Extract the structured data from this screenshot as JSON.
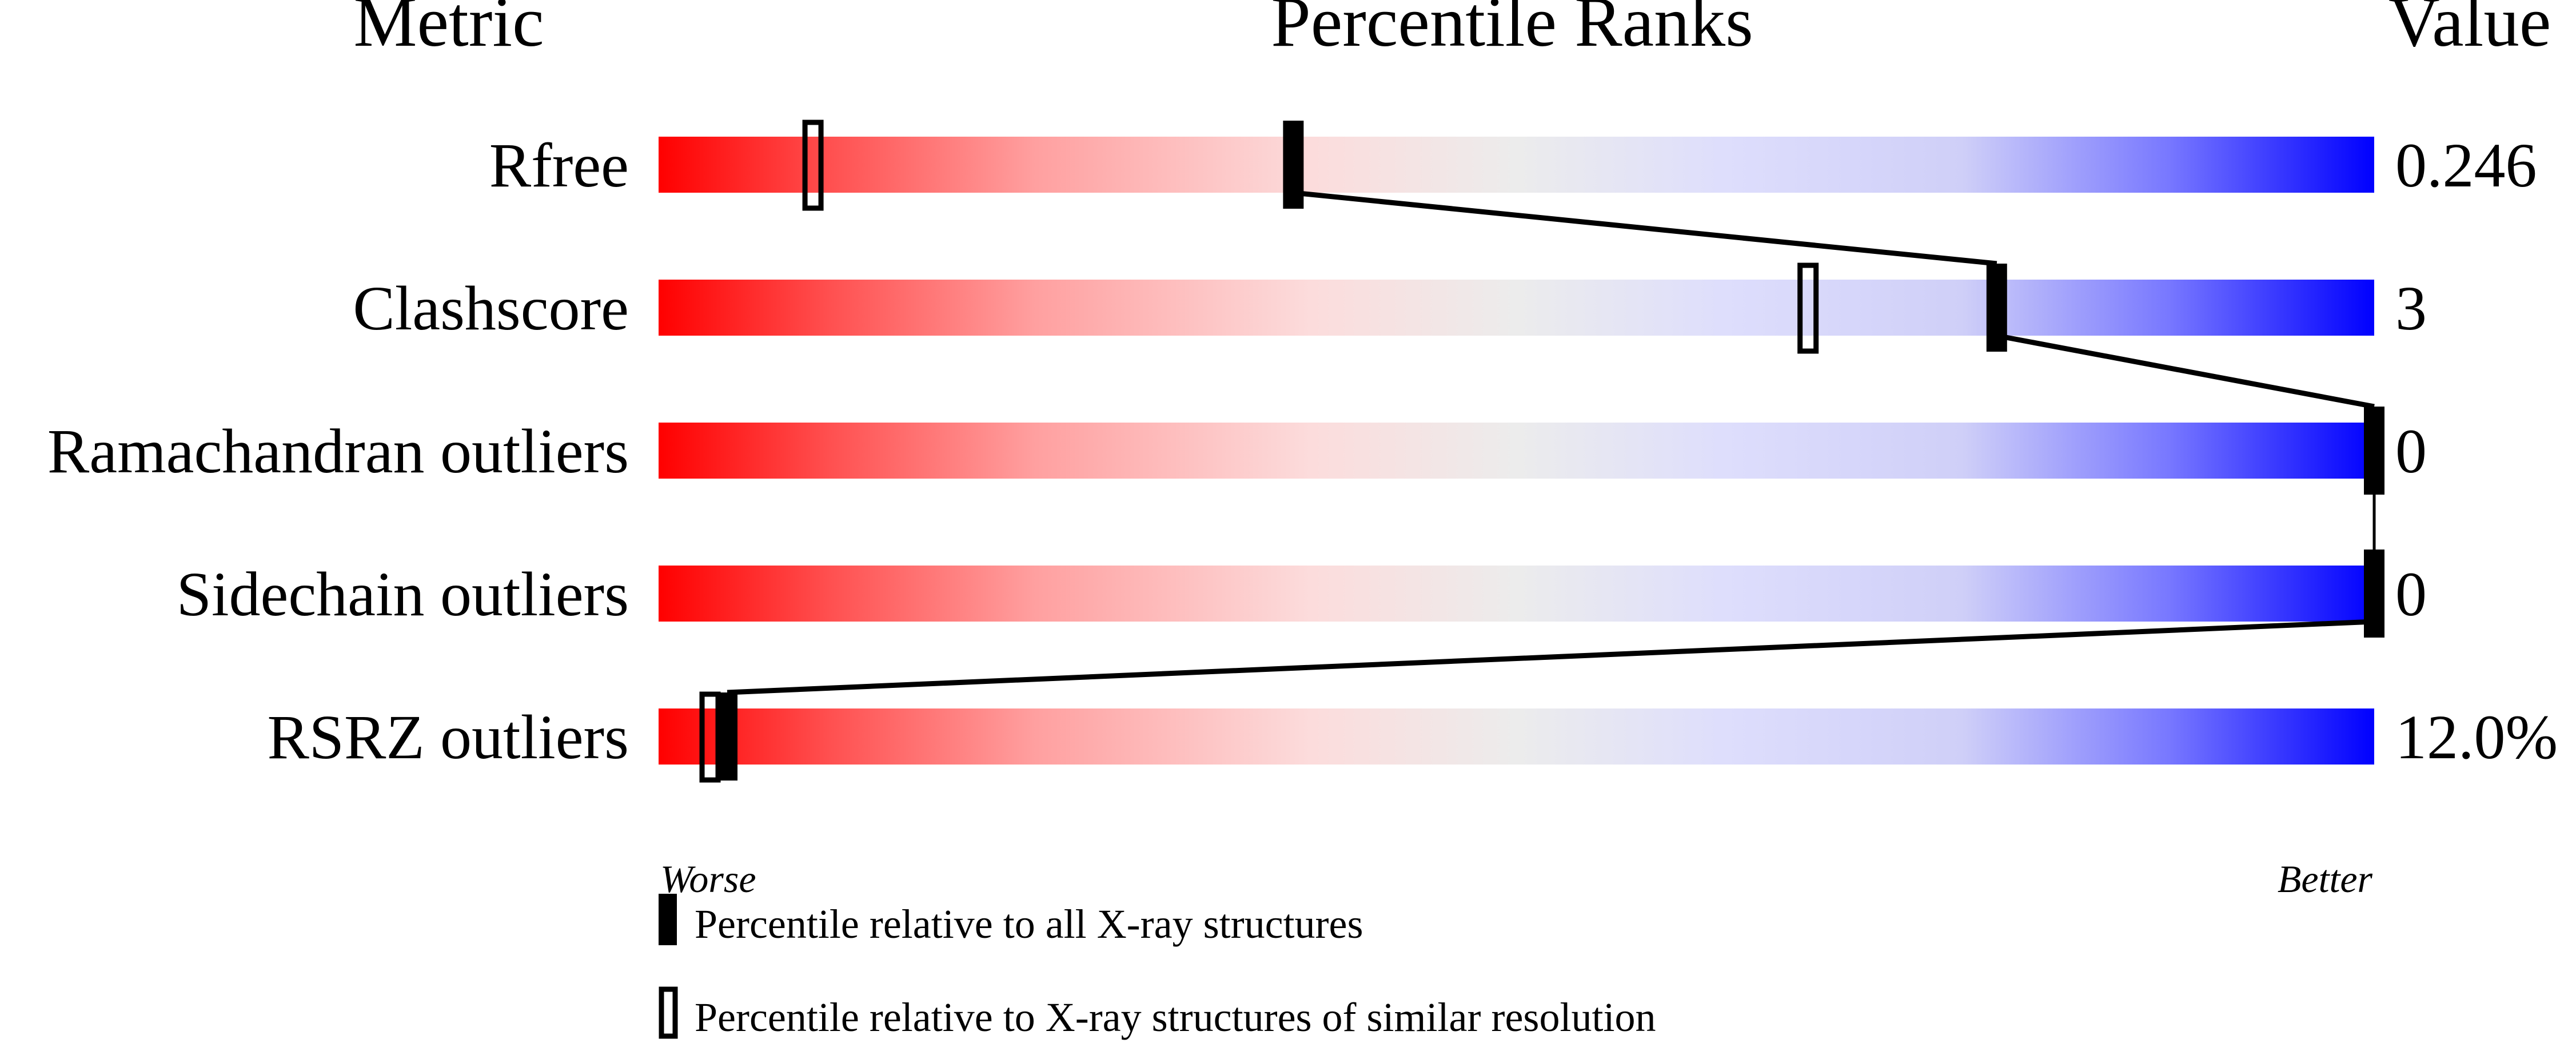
{
  "chart_data": {
    "type": "percentile-bars",
    "headers": {
      "metric": "Metric",
      "ranks": "Percentile Ranks",
      "value": "Value"
    },
    "metrics": [
      {
        "name": "Rfree",
        "value": "0.246",
        "percentile_all": 37,
        "percentile_similar": 9
      },
      {
        "name": "Clashscore",
        "value": "3",
        "percentile_all": 78,
        "percentile_similar": 67
      },
      {
        "name": "Ramachandran outliers",
        "value": "0",
        "percentile_all": 100,
        "percentile_similar": null
      },
      {
        "name": "Sidechain outliers",
        "value": "0",
        "percentile_all": 100,
        "percentile_similar": null
      },
      {
        "name": "RSRZ outliers",
        "value": "12.0%",
        "percentile_all": 4,
        "percentile_similar": 3
      }
    ],
    "axis": {
      "left_label": "Worse",
      "right_label": "Better",
      "range": [
        0,
        100
      ]
    },
    "legend": [
      {
        "marker": "filled",
        "label": "Percentile relative to all X-ray structures"
      },
      {
        "marker": "outline",
        "label": "Percentile relative to X-ray structures of similar resolution"
      }
    ],
    "colors": {
      "worse": "#ff0000",
      "middle": "#ececec",
      "better": "#0000ff",
      "marker": "#000000"
    }
  }
}
